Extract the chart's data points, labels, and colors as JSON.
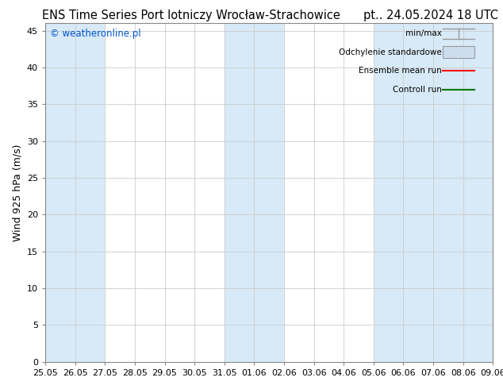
{
  "title": "ENS Time Series Port lotniczy Wrocław-Strachowice",
  "title_right": "pt.. 24.05.2024 18 UTC",
  "ylabel": "Wind 925 hPa (m/s)",
  "watermark": "© weatheronline.pl",
  "watermark_color": "#0055cc",
  "ylim": [
    0,
    46
  ],
  "yticks": [
    0,
    5,
    10,
    15,
    20,
    25,
    30,
    35,
    40,
    45
  ],
  "x_labels": [
    "25.05",
    "26.05",
    "27.05",
    "28.05",
    "29.05",
    "30.05",
    "31.05",
    "01.06",
    "02.06",
    "03.06",
    "04.06",
    "05.06",
    "06.06",
    "07.06",
    "08.06",
    "09.06"
  ],
  "bg_color": "#ffffff",
  "band_color": "#d8eaf7",
  "grid_color": "#cccccc",
  "title_fontsize": 10.5,
  "axis_fontsize": 9,
  "tick_fontsize": 8,
  "legend_items": [
    "min/max",
    "Odchylenie standardowe",
    "Ensemble mean run",
    "Controll run"
  ],
  "legend_line_colors": [
    "#999999",
    "#bbbbbb",
    "#ff0000",
    "#007700"
  ],
  "blue_band_ranges": [
    [
      0,
      2
    ],
    [
      6,
      8
    ],
    [
      11,
      15
    ]
  ],
  "white_band_ranges": [
    [
      2,
      6
    ],
    [
      8,
      11
    ]
  ]
}
